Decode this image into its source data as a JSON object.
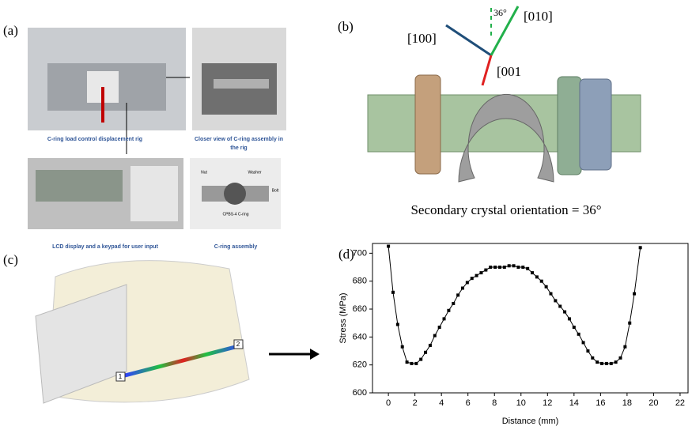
{
  "panels": {
    "a": {
      "label": "(a)",
      "captions": [
        "C-ring load control displacement rig",
        "Closer view of C-ring assembly in",
        "the rig",
        "LCD display and a keypad for user input",
        "C-ring assembly"
      ],
      "callouts": [
        "Nut",
        "Washer",
        "Bolt",
        "CPBS-4 C-ring"
      ]
    },
    "b": {
      "label": "(b)",
      "directions": [
        "[100]",
        "[010]",
        "[001"
      ],
      "angle": "36°",
      "caption": "Secondary crystal orientation = 36°"
    },
    "c": {
      "label": "(c)",
      "markers": [
        "1",
        "2"
      ]
    },
    "d": {
      "label": "(d)"
    }
  },
  "chart_data": {
    "type": "line",
    "marker": "square",
    "color": "#000000",
    "xlabel": "Distance (mm)",
    "ylabel": "Stress (MPa)",
    "x": [
      0,
      0.35,
      0.7,
      1.05,
      1.4,
      1.75,
      2.1,
      2.45,
      2.8,
      3.15,
      3.5,
      3.85,
      4.2,
      4.55,
      4.9,
      5.25,
      5.6,
      5.95,
      6.3,
      6.65,
      7.0,
      7.35,
      7.7,
      8.05,
      8.4,
      8.75,
      9.1,
      9.45,
      9.8,
      10.15,
      10.5,
      10.85,
      11.2,
      11.55,
      11.9,
      12.25,
      12.6,
      12.95,
      13.3,
      13.65,
      14.0,
      14.35,
      14.7,
      15.05,
      15.4,
      15.75,
      16.1,
      16.45,
      16.8,
      17.15,
      17.5,
      17.85,
      18.2,
      18.55,
      19.0
    ],
    "values": [
      705,
      672,
      649,
      633,
      622,
      621,
      621,
      624,
      629,
      634,
      641,
      647,
      653,
      659,
      664,
      670,
      675,
      679,
      682,
      684,
      686,
      688,
      690,
      690,
      690,
      690,
      691,
      691,
      690,
      690,
      689,
      686,
      683,
      680,
      676,
      671,
      666,
      662,
      658,
      653,
      647,
      642,
      636,
      630,
      625,
      622,
      621,
      621,
      621,
      622,
      625,
      633,
      650,
      671,
      704
    ],
    "xlim": [
      -1.2,
      22.6
    ],
    "xticks": [
      0,
      2,
      4,
      6,
      8,
      10,
      12,
      14,
      16,
      18,
      20,
      22
    ],
    "ylim": [
      600,
      707
    ],
    "yticks": [
      600,
      620,
      640,
      660,
      680,
      700
    ]
  }
}
